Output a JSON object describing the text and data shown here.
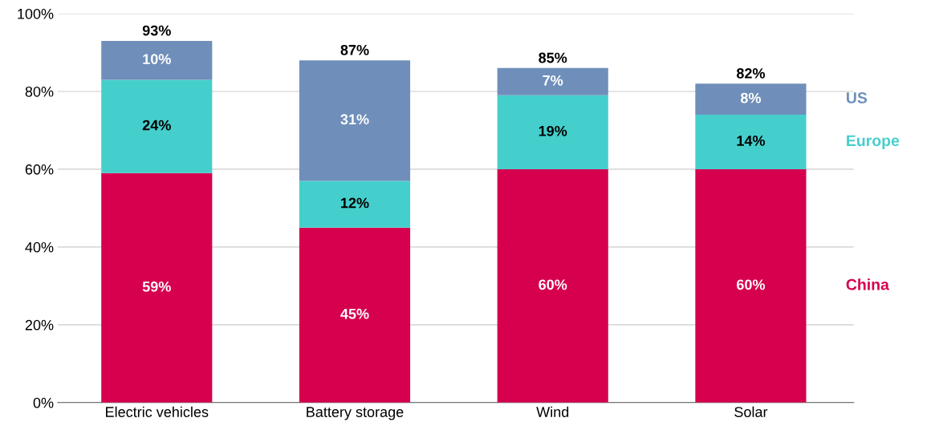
{
  "chart_data": {
    "type": "bar",
    "stacked": true,
    "categories": [
      "Electric vehicles",
      "Battery storage",
      "Wind",
      "Solar"
    ],
    "series": [
      {
        "name": "China",
        "color": "#d6004f",
        "values": [
          59,
          45,
          60,
          60
        ],
        "value_labels": [
          "59%",
          "45%",
          "60%",
          "60%"
        ]
      },
      {
        "name": "Europe",
        "color": "#45cfcc",
        "values": [
          24,
          12,
          19,
          14
        ],
        "value_labels": [
          "24%",
          "12%",
          "19%",
          "14%"
        ]
      },
      {
        "name": "US",
        "color": "#6f8fba",
        "values": [
          10,
          31,
          7,
          8
        ],
        "value_labels": [
          "10%",
          "31%",
          "7%",
          "8%"
        ]
      }
    ],
    "totals": [
      "93%",
      "87%",
      "85%",
      "82%"
    ],
    "ylim": [
      0,
      100
    ],
    "yticks": [
      {
        "value": 0,
        "label": "0%"
      },
      {
        "value": 20,
        "label": "20%"
      },
      {
        "value": 40,
        "label": "40%"
      },
      {
        "value": 60,
        "label": "60%"
      },
      {
        "value": 80,
        "label": "80%"
      },
      {
        "value": 100,
        "label": "100%"
      }
    ],
    "grid": "y",
    "legend": "right"
  }
}
